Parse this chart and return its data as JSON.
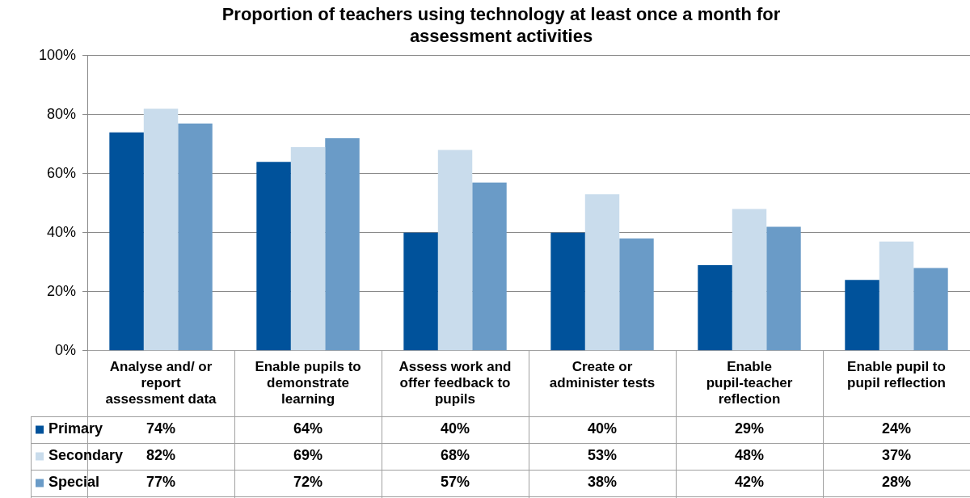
{
  "chart_data": {
    "type": "bar",
    "title": "Proportion of teachers using technology at least once a month for assessment activities",
    "categories": [
      "Analyse and/ or report assessment data",
      "Enable pupils to demonstrate learning",
      "Assess work and offer feedback to pupils",
      "Create or administer tests",
      "Enable pupil-teacher reflection",
      "Enable pupil to pupil reflection"
    ],
    "series": [
      {
        "name": "Primary",
        "color": "#00529b",
        "values": [
          74,
          64,
          40,
          40,
          29,
          24
        ],
        "value_labels": [
          "74%",
          "64%",
          "40%",
          "40%",
          "29%",
          "24%"
        ]
      },
      {
        "name": "Secondary",
        "color": "#c9dcec",
        "values": [
          82,
          69,
          68,
          53,
          48,
          37
        ],
        "value_labels": [
          "82%",
          "69%",
          "68%",
          "53%",
          "48%",
          "37%"
        ]
      },
      {
        "name": "Special",
        "color": "#6a9bc7",
        "values": [
          77,
          72,
          57,
          38,
          42,
          28
        ],
        "value_labels": [
          "77%",
          "72%",
          "57%",
          "38%",
          "42%",
          "28%"
        ]
      }
    ],
    "ylim": [
      0,
      100
    ],
    "yticks": [
      {
        "value": 0,
        "label": "0%"
      },
      {
        "value": 20,
        "label": "20%"
      },
      {
        "value": 40,
        "label": "40%"
      },
      {
        "value": 60,
        "label": "60%"
      },
      {
        "value": 80,
        "label": "80%"
      },
      {
        "value": 100,
        "label": "100%"
      }
    ],
    "grid": "y",
    "legend": "bottom"
  }
}
